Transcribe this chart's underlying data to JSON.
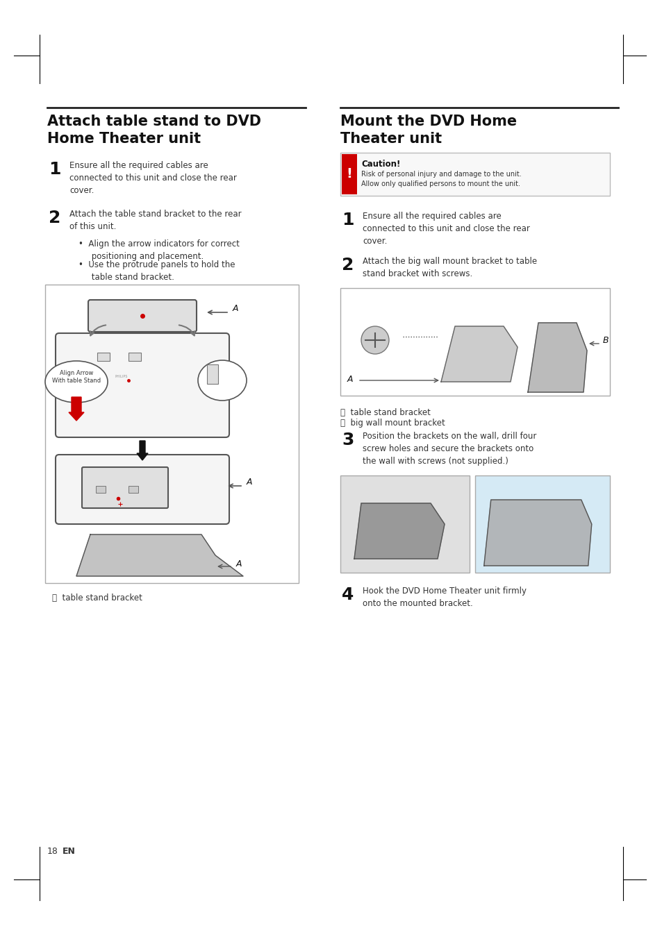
{
  "bg_color": "#ffffff",
  "page_number": "18",
  "page_lang": "EN",
  "left_title_line1": "Attach table stand to DVD",
  "left_title_line2": "Home Theater unit",
  "right_title_line1": "Mount the DVD Home",
  "right_title_line2": "Theater unit",
  "left_step1_num": "1",
  "left_step1_text": "Ensure all the required cables are\nconnected to this unit and close the rear\ncover.",
  "left_step2_num": "2",
  "left_step2_text": "Attach the table stand bracket to the rear\nof this unit.",
  "left_bullet1": "Align the arrow indicators for correct\npositioning and placement.",
  "left_bullet2": "Use the protrude panels to hold the\ntable stand bracket.",
  "left_caption": "A  table stand bracket",
  "right_caution_title": "Caution!",
  "right_caution_text": "Risk of personal injury and damage to the unit.\nAllow only qualified persons to mount the unit.",
  "right_step1_num": "1",
  "right_step1_text": "Ensure all the required cables are\nconnected to this unit and close the rear\ncover.",
  "right_step2_num": "2",
  "right_step2_text": "Attach the big wall mount bracket to table\nstand bracket with screws.",
  "right_captionA": "A  table stand bracket",
  "right_captionB": "B  big wall mount bracket",
  "right_step3_num": "3",
  "right_step3_text": "Position the brackets on the wall, drill four\nscrew holes and secure the brackets onto\nthe wall with screws (not supplied.)",
  "right_step4_num": "4",
  "right_step4_text": "Hook the DVD Home Theater unit firmly\nonto the mounted bracket.",
  "left_image_align_label": "Align Arrow\nWith table Stand",
  "title_fontsize": 15,
  "body_fontsize": 8.5,
  "step_num_fontsize": 18,
  "caption_fontsize": 8.5,
  "caution_fontsize": 8.5,
  "divider_color": "#222222",
  "text_color": "#333333",
  "step_color": "#111111",
  "caution_bg": "#f0f0f0",
  "caution_border": "#cc0000",
  "image_box_color": "#dddddd",
  "image_box_border": "#888888",
  "arrow_color": "#cc0000",
  "dark_arrow_color": "#111111"
}
